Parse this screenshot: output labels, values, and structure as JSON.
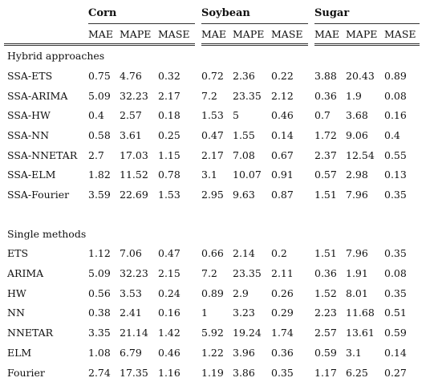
{
  "groups": [
    "Corn",
    "Soybean",
    "Sugar"
  ],
  "metrics": [
    "MAE",
    "MAPE",
    "MASE"
  ],
  "sections": [
    {
      "title": "Hybrid approaches",
      "rows": [
        {
          "name": "SSA-ETS",
          "values": [
            "0.75",
            "4.76",
            "0.32",
            "0.72",
            "2.36",
            "0.22",
            "3.88",
            "20.43",
            "0.89"
          ]
        },
        {
          "name": "SSA-ARIMA",
          "values": [
            "5.09",
            "32.23",
            "2.17",
            "7.2",
            "23.35",
            "2.12",
            "0.36",
            "1.9",
            "0.08"
          ]
        },
        {
          "name": "SSA-HW",
          "values": [
            "0.4",
            "2.57",
            "0.18",
            "1.53",
            "5",
            "0.46",
            "0.7",
            "3.68",
            "0.16"
          ]
        },
        {
          "name": "SSA-NN",
          "values": [
            "0.58",
            "3.61",
            "0.25",
            "0.47",
            "1.55",
            "0.14",
            "1.72",
            "9.06",
            "0.4"
          ]
        },
        {
          "name": "SSA-NNETAR",
          "values": [
            "2.7",
            "17.03",
            "1.15",
            "2.17",
            "7.08",
            "0.67",
            "2.37",
            "12.54",
            "0.55"
          ]
        },
        {
          "name": "SSA-ELM",
          "values": [
            "1.82",
            "11.52",
            "0.78",
            "3.1",
            "10.07",
            "0.91",
            "0.57",
            "2.98",
            "0.13"
          ]
        },
        {
          "name": "SSA-Fourier",
          "values": [
            "3.59",
            "22.69",
            "1.53",
            "2.95",
            "9.63",
            "0.87",
            "1.51",
            "7.96",
            "0.35"
          ]
        }
      ]
    },
    {
      "title": "Single methods",
      "rows": [
        {
          "name": "ETS",
          "values": [
            "1.12",
            "7.06",
            "0.47",
            "0.66",
            "2.14",
            "0.2",
            "1.51",
            "7.96",
            "0.35"
          ]
        },
        {
          "name": "ARIMA",
          "values": [
            "5.09",
            "32.23",
            "2.15",
            "7.2",
            "23.35",
            "2.11",
            "0.36",
            "1.91",
            "0.08"
          ]
        },
        {
          "name": "HW",
          "values": [
            "0.56",
            "3.53",
            "0.24",
            "0.89",
            "2.9",
            "0.26",
            "1.52",
            "8.01",
            "0.35"
          ]
        },
        {
          "name": "NN",
          "values": [
            "0.38",
            "2.41",
            "0.16",
            "1",
            "3.23",
            "0.29",
            "2.23",
            "11.68",
            "0.51"
          ]
        },
        {
          "name": "NNETAR",
          "values": [
            "3.35",
            "21.14",
            "1.42",
            "5.92",
            "19.24",
            "1.74",
            "2.57",
            "13.61",
            "0.59"
          ]
        },
        {
          "name": "ELM",
          "values": [
            "1.08",
            "6.79",
            "0.46",
            "1.22",
            "3.96",
            "0.36",
            "0.59",
            "3.1",
            "0.14"
          ]
        },
        {
          "name": "Fourier",
          "values": [
            "2.74",
            "17.35",
            "1.16",
            "1.19",
            "3.86",
            "0.35",
            "1.17",
            "6.25",
            "0.27"
          ]
        }
      ]
    }
  ]
}
